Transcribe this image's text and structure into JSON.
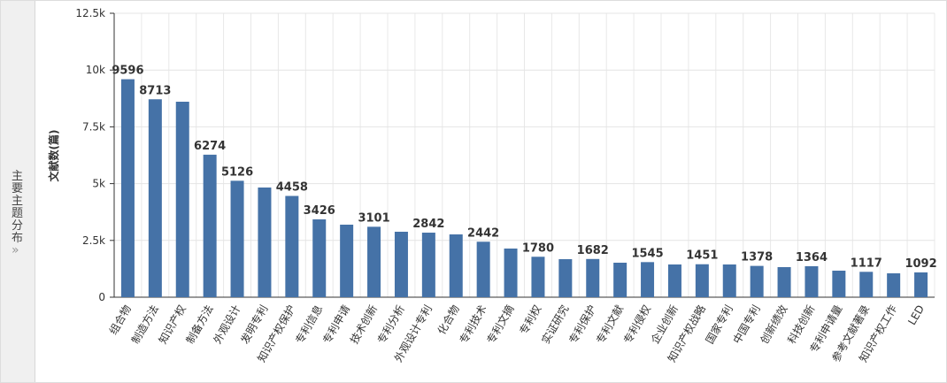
{
  "side_tab": {
    "label": "主要主题分布"
  },
  "chart_data": {
    "type": "bar",
    "y_label": "文献数(篇)",
    "categories": [
      "组合物",
      "制造方法",
      "知识产权",
      "制备方法",
      "外观设计",
      "发明专利",
      "知识产权保护",
      "专利信息",
      "专利申请",
      "技术创新",
      "专利分析",
      "外观设计专利",
      "化合物",
      "专利技术",
      "专利文摘",
      "专利权",
      "实证研究",
      "专利保护",
      "专利文献",
      "专利侵权",
      "企业创新",
      "知识产权战略",
      "国家专利",
      "中国专利",
      "创新绩效",
      "科技创新",
      "专利申请量",
      "参考文献著录",
      "知识产权工作",
      "LED"
    ],
    "values": [
      9596,
      8713,
      8606,
      6274,
      5126,
      4829,
      4458,
      3426,
      3193,
      3101,
      2882,
      2842,
      2765,
      2442,
      2142,
      1780,
      1674,
      1682,
      1519,
      1545,
      1441,
      1451,
      1441,
      1378,
      1324,
      1364,
      1168,
      1117,
      1051,
      1092
    ],
    "value_labels": [
      "9596",
      "8713",
      null,
      "6274",
      "5126",
      null,
      "4458",
      "3426",
      null,
      "3101",
      null,
      "2842",
      null,
      "2442",
      null,
      "1780",
      null,
      "1682",
      null,
      "1545",
      null,
      "1451",
      null,
      "1378",
      null,
      "1364",
      null,
      "1117",
      null,
      "1092"
    ],
    "color": "#4572a7",
    "ylim": [
      0,
      12500
    ],
    "yticks": [
      0,
      {
        "value": 2500,
        "label": "2.5k"
      },
      {
        "value": 5000,
        "label": "5k"
      },
      {
        "value": 7500,
        "label": "7.5k"
      },
      {
        "value": 10000,
        "label": "10k"
      },
      {
        "value": 12500,
        "label": "12.5k"
      }
    ],
    "grid": true
  }
}
